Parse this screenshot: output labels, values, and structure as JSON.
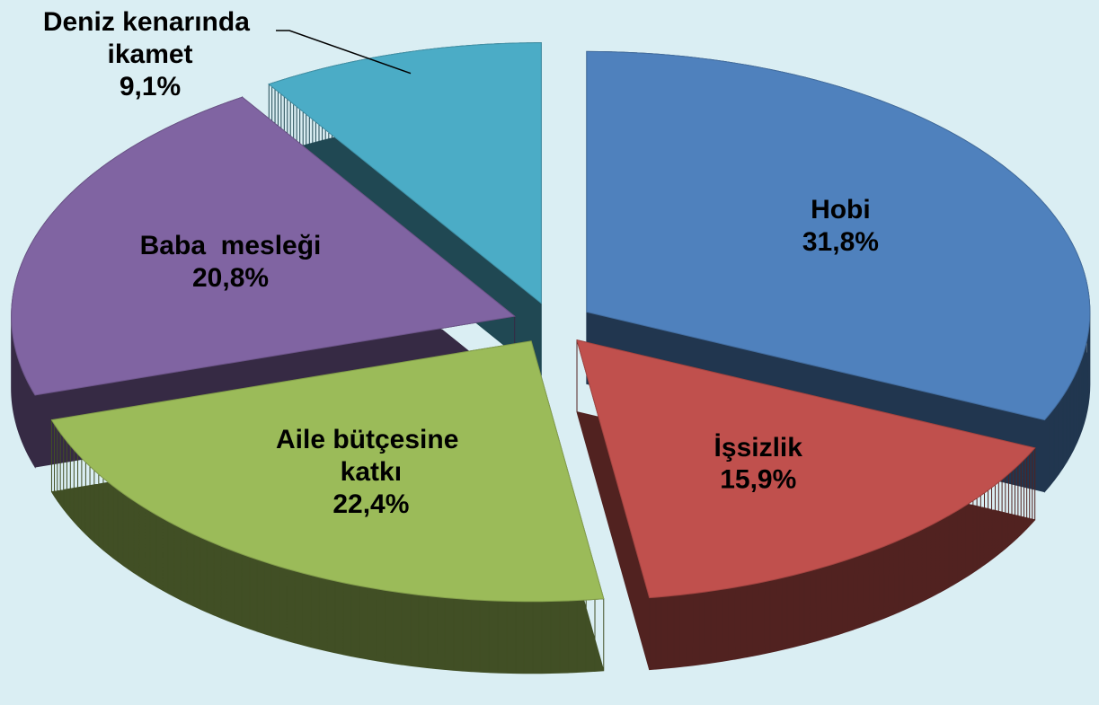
{
  "chart_data": {
    "type": "pie",
    "categories": [
      "Hobi",
      "İşsizlik",
      "Aile bütçesine katkı",
      "Baba  mesleği",
      "Deniz kenarında ikamet"
    ],
    "values": [
      31.8,
      15.9,
      22.4,
      20.8,
      9.1
    ],
    "value_labels": [
      "31,8%",
      "15,9%",
      "22,4%",
      "20,8%",
      "9,1%"
    ],
    "colors": [
      "#4f81bd",
      "#c0504d",
      "#9bbb59",
      "#8064a2",
      "#4bacc6"
    ]
  }
}
